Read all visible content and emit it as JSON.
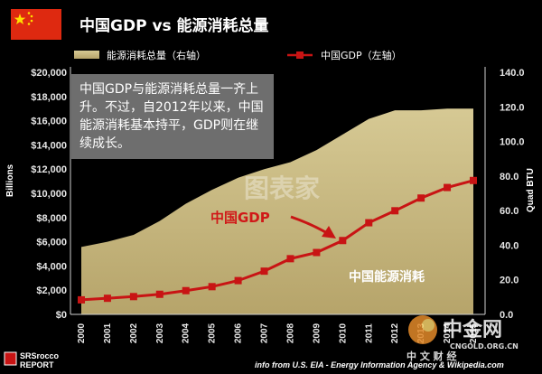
{
  "chart_data": {
    "type": "line",
    "title": "中国GDP vs 能源消耗总量",
    "x": [
      "2000",
      "2001",
      "2002",
      "2003",
      "2004",
      "2005",
      "2006",
      "2007",
      "2008",
      "2009",
      "2010",
      "2011",
      "2012",
      "2013",
      "2014",
      "2015"
    ],
    "series": [
      {
        "name": "能源消耗总量（右轴）",
        "kind": "area",
        "axis": "right",
        "color": "#cfc08c",
        "values": [
          39,
          42,
          46,
          54,
          64,
          72,
          79,
          84,
          88,
          95,
          104,
          113,
          118,
          118,
          119,
          119
        ]
      },
      {
        "name": "中国GDP（左轴）",
        "kind": "line-markers",
        "axis": "left",
        "color": "#c81414",
        "values": [
          1200,
          1330,
          1470,
          1660,
          1960,
          2290,
          2790,
          3570,
          4600,
          5110,
          6100,
          7570,
          8560,
          9610,
          10480,
          11060
        ]
      }
    ],
    "y_left": {
      "label": "Billions",
      "lim": [
        0,
        20000
      ],
      "ticks": [
        "$0",
        "$2,000",
        "$4,000",
        "$6,000",
        "$8,000",
        "$10,000",
        "$12,000",
        "$14,000",
        "$16,000",
        "$18,000",
        "$20,000"
      ]
    },
    "y_right": {
      "label": "Quad BTU",
      "lim": [
        0,
        140
      ],
      "ticks": [
        "0.0",
        "20.0",
        "40.0",
        "60.0",
        "80.0",
        "100.0",
        "120.0",
        "140.0"
      ]
    },
    "annotations": {
      "box": "中国GDP与能源消耗总量一齐上升。不过，自2012年以来，中国能源消耗基本持平，GDP则在继续成长。",
      "gdp_label": "中国GDP",
      "energy_label": "中国能源消耗"
    },
    "source": "info from U.S. EIA - Energy Information Agency & Wikipedia.com",
    "grid": false,
    "legend": "top"
  },
  "branding": {
    "report_logo": [
      "SRSrocco",
      "REPORT"
    ],
    "watermark_zjw": "中金网",
    "watermark_url": "CNGOLD.ORG.CN",
    "watermark_tagline": "中 文 财 经 ",
    "watermark_center": "图表家"
  },
  "colors": {
    "background": "#000000",
    "area": "#cfc08c",
    "gdp": "#c81414",
    "flag": "#de2910"
  }
}
